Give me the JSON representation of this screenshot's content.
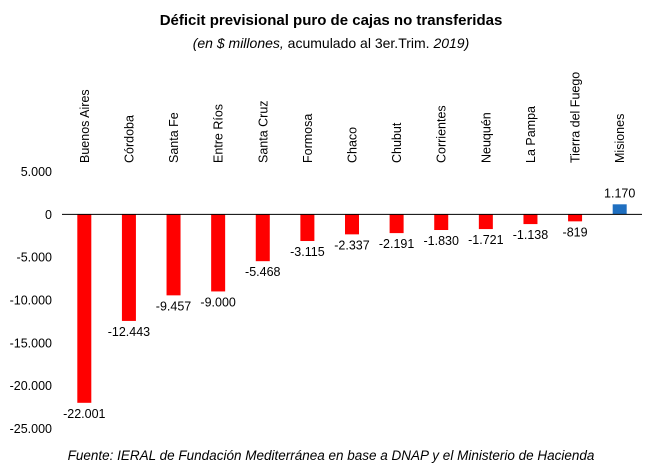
{
  "title": "Déficit previsional puro de cajas no transferidas",
  "subtitle": {
    "part1": "(en $ millones,",
    "part2": " acumulado al 3er.Trim. ",
    "part3": "2019)"
  },
  "source": "Fuente: IERAL de Fundación Mediterránea en base a DNAP y el Ministerio de Hacienda",
  "colors": {
    "negative": "#ff0000",
    "positive": "#1f6fc0",
    "axis": "#000000",
    "text": "#000000"
  },
  "chart_data": {
    "type": "bar",
    "categories": [
      "Buenos Aires",
      "Córdoba",
      "Santa Fe",
      "Entre Ríos",
      "Santa Cruz",
      "Formosa",
      "Chaco",
      "Chubut",
      "Corrientes",
      "Neuquén",
      "La Pampa",
      "Tierra del Fuego",
      "Misiones"
    ],
    "values": [
      -22001,
      -12443,
      -9457,
      -9000,
      -5468,
      -3115,
      -2337,
      -2191,
      -1830,
      -1721,
      -1138,
      -819,
      1170
    ],
    "data_labels": [
      "-22.001",
      "-12.443",
      "-9.457",
      "-9.000",
      "-5.468",
      "-3.115",
      "-2.337",
      "-2.191",
      "-1.830",
      "-1.721",
      "-1.138",
      "-819",
      "1.170"
    ],
    "yticks": [
      5000,
      0,
      -5000,
      -10000,
      -15000,
      -20000,
      -25000
    ],
    "ytick_labels": [
      "5.000",
      "0",
      "-5.000",
      "-10.000",
      "-15.000",
      "-20.000",
      "-25.000"
    ],
    "ylim": [
      -25000,
      5000
    ],
    "grid": false,
    "legend": "none"
  }
}
